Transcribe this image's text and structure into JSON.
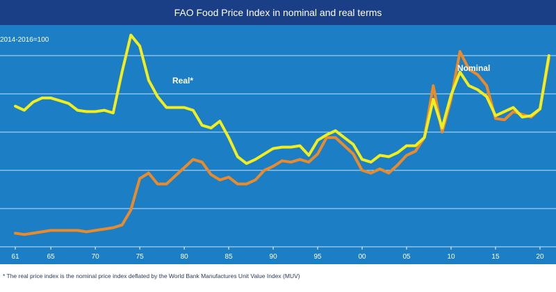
{
  "chart_data": {
    "type": "line",
    "title": "FAO Food Price Index in nominal and real terms",
    "ylabel": "2014-2016=100",
    "footnote": "* The real price index is the nominal price index deflated by the World Bank Manufactures Unit Value Index (MUV)",
    "x_tick_labels": [
      "61",
      "65",
      "70",
      "75",
      "80",
      "85",
      "90",
      "95",
      "00",
      "05",
      "10",
      "15",
      "20"
    ],
    "x": [
      1961,
      1962,
      1963,
      1964,
      1965,
      1966,
      1967,
      1968,
      1969,
      1970,
      1971,
      1972,
      1973,
      1974,
      1975,
      1976,
      1977,
      1978,
      1979,
      1980,
      1981,
      1982,
      1983,
      1984,
      1985,
      1986,
      1987,
      1988,
      1989,
      1990,
      1991,
      1992,
      1993,
      1994,
      1995,
      1996,
      1997,
      1998,
      1999,
      2000,
      2001,
      2002,
      2003,
      2004,
      2005,
      2006,
      2007,
      2008,
      2009,
      2010,
      2011,
      2012,
      2013,
      2014,
      2015,
      2016,
      2017,
      2018,
      2019,
      2020,
      2021
    ],
    "xlim": [
      1961,
      2021.8
    ],
    "ylim": [
      0,
      140
    ],
    "grid": true,
    "series": [
      {
        "name": "Real*",
        "color": "#f2ee1e",
        "values": [
          103,
          100,
          106,
          109,
          109,
          107,
          105,
          100,
          99,
          99,
          100,
          98,
          128,
          155,
          147,
          122,
          110,
          102,
          102,
          102,
          100,
          89,
          87,
          92,
          80,
          66,
          61,
          64,
          68,
          72,
          73,
          73,
          74,
          67,
          78,
          82,
          85,
          80,
          75,
          64,
          62,
          67,
          66,
          69,
          74,
          74,
          80,
          108,
          87,
          111,
          128,
          118,
          115,
          110,
          96,
          99,
          102,
          95,
          96,
          101,
          140
        ],
        "label": "Real*"
      },
      {
        "name": "Nominal",
        "color": "#e98b2a",
        "values": [
          10,
          9,
          10,
          11,
          12,
          12,
          12,
          12,
          11,
          12,
          13,
          14,
          16,
          27,
          50,
          54,
          46,
          46,
          52,
          58,
          64,
          62,
          53,
          49,
          51,
          46,
          46,
          49,
          56,
          59,
          63,
          62,
          64,
          62,
          68,
          80,
          80,
          74,
          68,
          56,
          54,
          57,
          54,
          60,
          67,
          70,
          80,
          118,
          84,
          108,
          143,
          130,
          126,
          118,
          94,
          93,
          99,
          97,
          95,
          101,
          138
        ],
        "label": "Nominal"
      }
    ]
  }
}
